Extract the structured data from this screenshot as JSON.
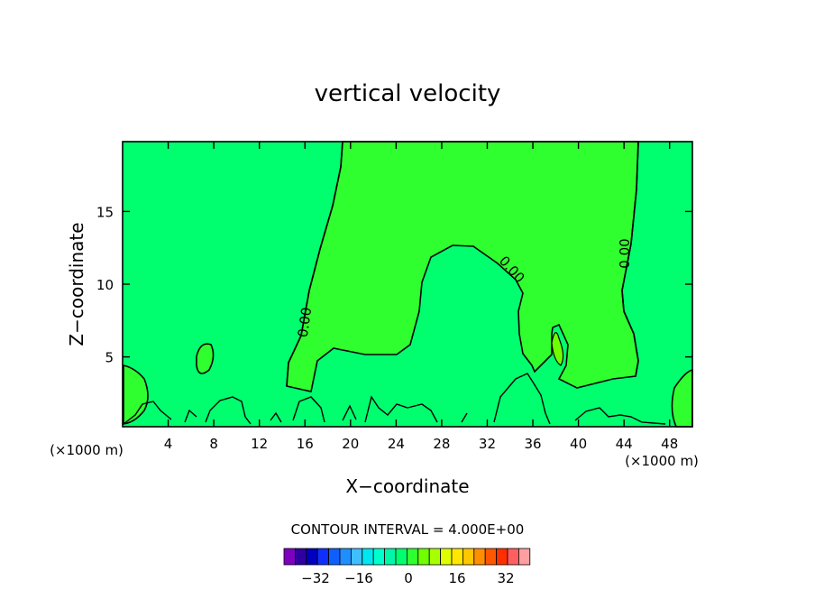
{
  "chart_data": {
    "type": "heatmap",
    "title": "vertical velocity",
    "xlabel": "X−coordinate",
    "ylabel": "Z−coordinate",
    "x_unit_left": "(×1000 m)",
    "x_unit_right": "(×1000 m)",
    "xlim": [
      0,
      50
    ],
    "ylim": [
      0.2,
      19.8
    ],
    "x_ticks": [
      4,
      8,
      12,
      16,
      20,
      24,
      28,
      32,
      36,
      40,
      44,
      48
    ],
    "y_ticks": [
      5,
      10,
      15
    ],
    "contour_interval_label": "CONTOUR INTERVAL = 4.000E+00",
    "contour_labels": [
      "0.00",
      "0.00",
      "0.00"
    ],
    "colorbar": {
      "colors": [
        "#7f00bf",
        "#2f009f",
        "#0000bf",
        "#0f2fff",
        "#0f5fff",
        "#1f8fff",
        "#3fbfff",
        "#00e7ef",
        "#00ffcf",
        "#00f7a7",
        "#00ff6f",
        "#2fff2f",
        "#6fff00",
        "#a7ff00",
        "#dfff00",
        "#ffe700",
        "#ffc700",
        "#ff8f00",
        "#ff5700",
        "#ff2f00",
        "#ff5f5f",
        "#ff9f9f"
      ],
      "tick_labels": [
        "−32",
        "−16",
        "0",
        "16",
        "32"
      ]
    },
    "field_colors": {
      "zero_band": "#00ff6f",
      "positive_band": "#2fff2f"
    }
  }
}
